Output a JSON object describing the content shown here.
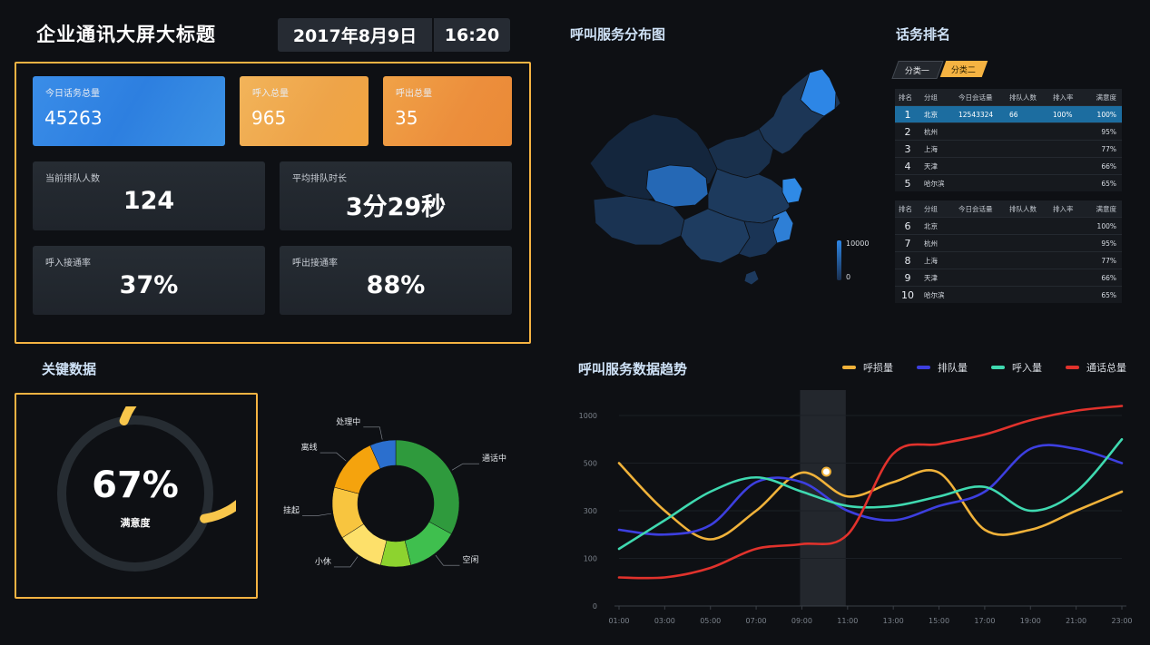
{
  "header": {
    "title": "企业通讯大屏大标题",
    "date": "2017年8月9日",
    "time": "16:20"
  },
  "stats": {
    "total_calls": {
      "label": "今日话务总量",
      "value": "45263"
    },
    "inbound": {
      "label": "呼入总量",
      "value": "965"
    },
    "outbound": {
      "label": "呼出总量",
      "value": "35"
    },
    "queue": {
      "label": "当前排队人数",
      "value": "124"
    },
    "avg_wait": {
      "label": "平均排队时长",
      "value": "3分29秒"
    },
    "inbound_rate": {
      "label": "呼入接通率",
      "value": "37%"
    },
    "outbound_rate": {
      "label": "呼出接通率",
      "value": "88%"
    }
  },
  "key_data": {
    "title": "关键数据",
    "satisfaction": {
      "value": "67%",
      "label": "满意度",
      "fraction": 0.67
    },
    "colors": {
      "gauge": "#f8c64b",
      "track": "#262c32"
    }
  },
  "donut_chart": {
    "chart_data": {
      "type": "pie",
      "donut": true,
      "slices": [
        {
          "label": "通话中",
          "value": 30,
          "color": "#2f9a3d"
        },
        {
          "label": "空闲",
          "value": 12,
          "color": "#3fbf4e"
        },
        {
          "label": "",
          "value": 7,
          "color": "#8dd32f"
        },
        {
          "label": "小休",
          "value": 11,
          "color": "#fde06a"
        },
        {
          "label": "挂起",
          "value": 12,
          "color": "#f8c53f"
        },
        {
          "label": "离线",
          "value": 13,
          "color": "#f5a30d"
        },
        {
          "label": "处理中",
          "value": 6,
          "color": "#2b6fce"
        }
      ]
    }
  },
  "map": {
    "title": "呼叫服务分布图",
    "legend_max": "10000",
    "legend_min": "0",
    "colors": {
      "low": "#1a3050",
      "high": "#2d86e6"
    }
  },
  "ranking": {
    "title": "话务排名",
    "tabs": [
      "分类一",
      "分类二"
    ],
    "active_tab": 1,
    "headers": [
      "排名",
      "分组",
      "今日会话量",
      "排队人数",
      "排入率",
      "满意度"
    ],
    "table1": [
      {
        "rank": "1",
        "group": "北京",
        "calls": "12543324",
        "queue": "66",
        "rate": "100%",
        "sat": "100%",
        "highlight": true
      },
      {
        "rank": "2",
        "group": "杭州",
        "calls": "",
        "queue": "",
        "rate": "",
        "sat": "95%"
      },
      {
        "rank": "3",
        "group": "上海",
        "calls": "",
        "queue": "",
        "rate": "",
        "sat": "77%"
      },
      {
        "rank": "4",
        "group": "天津",
        "calls": "",
        "queue": "",
        "rate": "",
        "sat": "66%"
      },
      {
        "rank": "5",
        "group": "哈尔滨",
        "calls": "",
        "queue": "",
        "rate": "",
        "sat": "65%"
      }
    ],
    "table2": [
      {
        "rank": "6",
        "group": "北京",
        "calls": "",
        "queue": "",
        "rate": "",
        "sat": "100%"
      },
      {
        "rank": "7",
        "group": "杭州",
        "calls": "",
        "queue": "",
        "rate": "",
        "sat": "95%"
      },
      {
        "rank": "8",
        "group": "上海",
        "calls": "",
        "queue": "",
        "rate": "",
        "sat": "77%"
      },
      {
        "rank": "9",
        "group": "天津",
        "calls": "",
        "queue": "",
        "rate": "",
        "sat": "66%"
      },
      {
        "rank": "10",
        "group": "哈尔滨",
        "calls": "",
        "queue": "",
        "rate": "",
        "sat": "65%"
      }
    ]
  },
  "trend": {
    "title": "呼叫服务数据趋势",
    "chart_data": {
      "type": "line",
      "x": [
        "01:00",
        "03:00",
        "05:00",
        "07:00",
        "09:00",
        "11:00",
        "13:00",
        "15:00",
        "17:00",
        "19:00",
        "21:00",
        "23:00"
      ],
      "y_ticks": [
        "0",
        "100",
        "300",
        "500",
        "1000"
      ],
      "highlight_x": "09:00",
      "series": [
        {
          "name": "呼损量",
          "color": "#f0b23a",
          "values": [
            3.0,
            2.0,
            1.4,
            2.0,
            2.8,
            2.3,
            2.6,
            2.8,
            1.6,
            1.6,
            2.0,
            2.4
          ]
        },
        {
          "name": "排队量",
          "color": "#3d3fe0",
          "values": [
            1.6,
            1.5,
            1.7,
            2.6,
            2.6,
            2.0,
            1.8,
            2.1,
            2.4,
            3.3,
            3.3,
            3.0
          ]
        },
        {
          "name": "呼入量",
          "color": "#3fd9b0",
          "values": [
            1.2,
            1.8,
            2.4,
            2.7,
            2.4,
            2.1,
            2.1,
            2.3,
            2.5,
            2.0,
            2.4,
            3.5
          ]
        },
        {
          "name": "通话总量",
          "color": "#e1322c",
          "values": [
            0.6,
            0.6,
            0.8,
            1.2,
            1.3,
            1.5,
            3.2,
            3.4,
            3.6,
            3.9,
            4.1,
            4.2
          ]
        }
      ]
    }
  }
}
